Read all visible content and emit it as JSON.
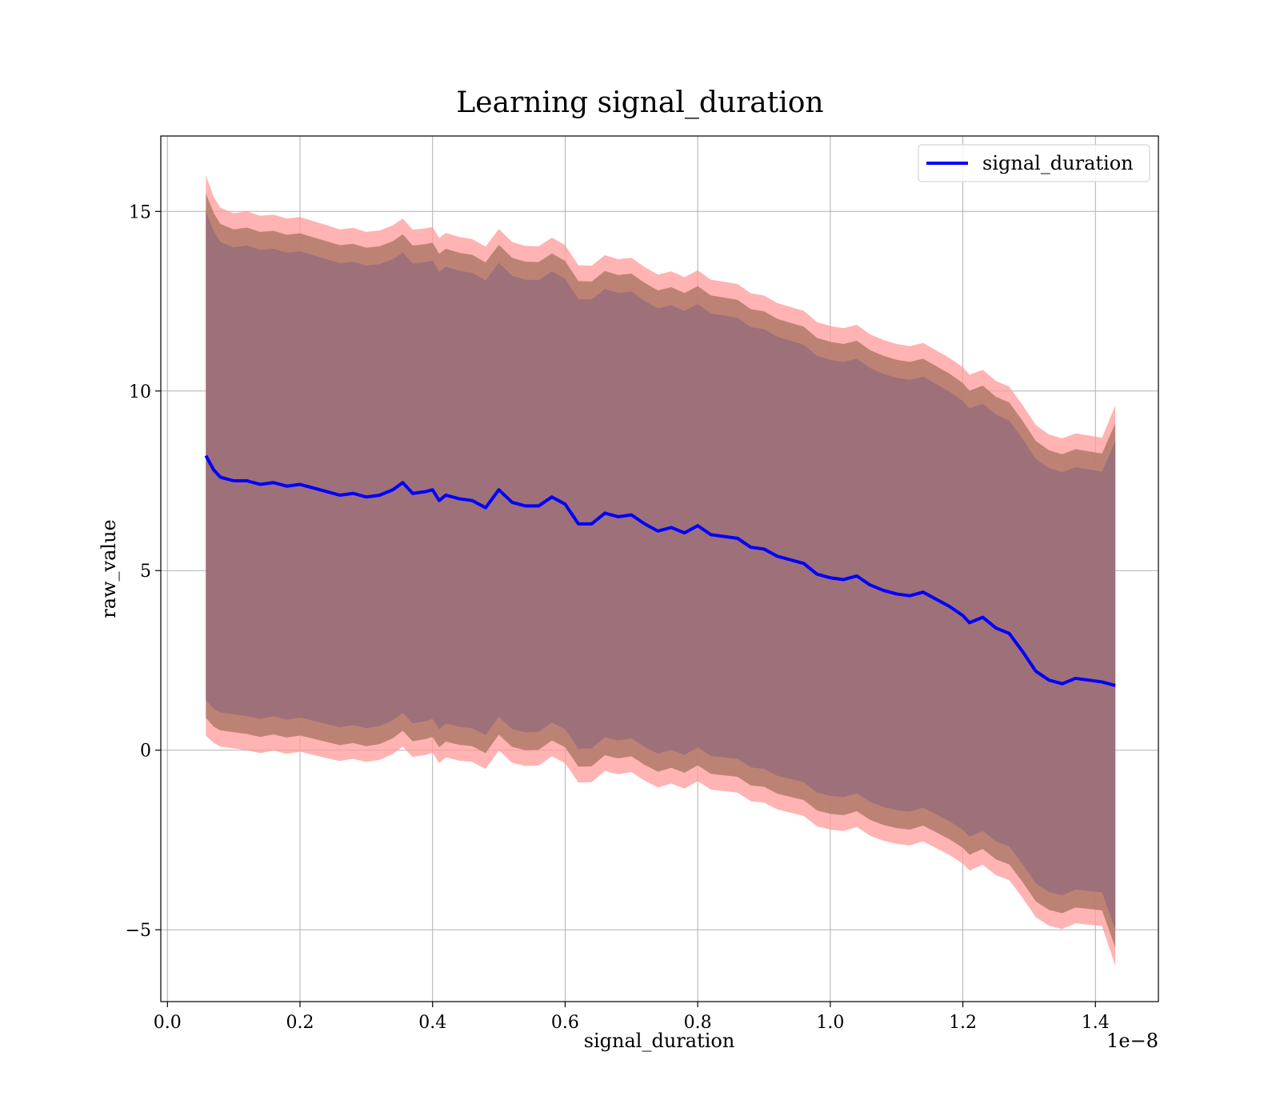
{
  "chart_data": {
    "type": "line",
    "title": "Learning signal_duration",
    "xlabel": "signal_duration",
    "ylabel": "raw_value",
    "x_offset_label": "1e−8",
    "xlim": [
      -0.01,
      1.495
    ],
    "ylim": [
      -7.0,
      17.1
    ],
    "x_ticks": [
      0.0,
      0.2,
      0.4,
      0.6,
      0.8,
      1.0,
      1.2,
      1.4
    ],
    "x_tick_labels": [
      "0.0",
      "0.2",
      "0.4",
      "0.6",
      "0.8",
      "1.0",
      "1.2",
      "1.4"
    ],
    "y_ticks": [
      -5,
      0,
      5,
      10,
      15
    ],
    "y_tick_labels": [
      "−5",
      "0",
      "5",
      "10",
      "15"
    ],
    "grid": true,
    "legend_position": "top-right",
    "series": [
      {
        "name": "signal_duration",
        "color": "#0000ff",
        "x": [
          0.058,
          0.07,
          0.08,
          0.1,
          0.12,
          0.14,
          0.16,
          0.18,
          0.2,
          0.22,
          0.24,
          0.26,
          0.28,
          0.3,
          0.32,
          0.34,
          0.355,
          0.37,
          0.39,
          0.4,
          0.41,
          0.42,
          0.44,
          0.46,
          0.48,
          0.5,
          0.52,
          0.54,
          0.56,
          0.58,
          0.6,
          0.62,
          0.64,
          0.66,
          0.68,
          0.7,
          0.72,
          0.74,
          0.76,
          0.78,
          0.8,
          0.82,
          0.84,
          0.86,
          0.88,
          0.9,
          0.92,
          0.94,
          0.96,
          0.98,
          1.0,
          1.02,
          1.04,
          1.06,
          1.08,
          1.1,
          1.12,
          1.14,
          1.16,
          1.18,
          1.2,
          1.21,
          1.23,
          1.25,
          1.27,
          1.29,
          1.31,
          1.33,
          1.35,
          1.37,
          1.39,
          1.41,
          1.43
        ],
        "y": [
          8.2,
          7.8,
          7.6,
          7.5,
          7.5,
          7.4,
          7.45,
          7.35,
          7.4,
          7.3,
          7.2,
          7.1,
          7.15,
          7.05,
          7.1,
          7.25,
          7.45,
          7.15,
          7.2,
          7.25,
          6.95,
          7.1,
          7.0,
          6.95,
          6.75,
          7.25,
          6.9,
          6.8,
          6.8,
          7.05,
          6.85,
          6.3,
          6.3,
          6.6,
          6.5,
          6.55,
          6.3,
          6.1,
          6.2,
          6.05,
          6.25,
          6.0,
          5.95,
          5.9,
          5.65,
          5.6,
          5.4,
          5.3,
          5.2,
          4.9,
          4.8,
          4.75,
          4.85,
          4.6,
          4.45,
          4.35,
          4.3,
          4.4,
          4.2,
          4.0,
          3.75,
          3.55,
          3.7,
          3.4,
          3.25,
          2.75,
          2.2,
          1.95,
          1.85,
          2.0,
          1.95,
          1.9,
          1.8
        ]
      }
    ],
    "bands": [
      {
        "sigma": 3,
        "color": "#ff9999",
        "opacity": 0.75,
        "width": [
          7.8,
          7.6,
          7.5,
          7.45,
          7.5,
          7.48,
          7.46,
          7.45,
          7.44,
          7.43,
          7.42,
          7.4,
          7.39,
          7.38,
          7.37,
          7.36,
          7.35,
          7.34,
          7.33,
          7.32,
          7.31,
          7.3,
          7.29,
          7.28,
          7.27,
          7.26,
          7.25,
          7.24,
          7.23,
          7.22,
          7.21,
          7.2,
          7.19,
          7.18,
          7.17,
          7.16,
          7.15,
          7.14,
          7.13,
          7.12,
          7.11,
          7.1,
          7.09,
          7.08,
          7.07,
          7.06,
          7.05,
          7.04,
          7.03,
          7.02,
          7.01,
          7.0,
          6.99,
          6.98,
          6.97,
          6.96,
          6.95,
          6.94,
          6.93,
          6.92,
          6.91,
          6.9,
          6.89,
          6.88,
          6.87,
          6.86,
          6.85,
          6.84,
          6.83,
          6.82,
          6.81,
          6.8,
          7.8
        ]
      },
      {
        "sigma": 2,
        "color": "#b07a6a",
        "opacity": 0.85,
        "width": [
          7.3,
          7.15,
          7.05,
          7.0,
          7.05,
          7.03,
          7.01,
          7.0,
          6.99,
          6.98,
          6.97,
          6.96,
          6.95,
          6.94,
          6.93,
          6.92,
          6.91,
          6.9,
          6.89,
          6.88,
          6.87,
          6.86,
          6.85,
          6.84,
          6.83,
          6.82,
          6.81,
          6.8,
          6.79,
          6.78,
          6.77,
          6.76,
          6.75,
          6.74,
          6.73,
          6.72,
          6.71,
          6.7,
          6.69,
          6.68,
          6.67,
          6.66,
          6.65,
          6.64,
          6.63,
          6.62,
          6.61,
          6.6,
          6.59,
          6.58,
          6.57,
          6.56,
          6.55,
          6.54,
          6.53,
          6.52,
          6.51,
          6.5,
          6.49,
          6.48,
          6.47,
          6.46,
          6.45,
          6.44,
          6.43,
          6.42,
          6.41,
          6.4,
          6.39,
          6.38,
          6.37,
          6.36,
          7.3
        ]
      },
      {
        "sigma": 1,
        "color": "#9e707a",
        "opacity": 1.0,
        "width": [
          6.8,
          6.65,
          6.55,
          6.5,
          6.55,
          6.53,
          6.51,
          6.5,
          6.49,
          6.48,
          6.47,
          6.46,
          6.45,
          6.44,
          6.43,
          6.42,
          6.41,
          6.4,
          6.39,
          6.38,
          6.37,
          6.36,
          6.35,
          6.34,
          6.33,
          6.32,
          6.31,
          6.3,
          6.29,
          6.28,
          6.27,
          6.26,
          6.25,
          6.24,
          6.23,
          6.22,
          6.21,
          6.2,
          6.19,
          6.18,
          6.17,
          6.16,
          6.15,
          6.14,
          6.13,
          6.12,
          6.11,
          6.1,
          6.09,
          6.08,
          6.07,
          6.06,
          6.05,
          6.04,
          6.03,
          6.02,
          6.01,
          6.0,
          5.99,
          5.98,
          5.97,
          5.96,
          5.95,
          5.94,
          5.93,
          5.92,
          5.91,
          5.9,
          5.89,
          5.88,
          5.87,
          5.86,
          6.8
        ]
      }
    ]
  }
}
